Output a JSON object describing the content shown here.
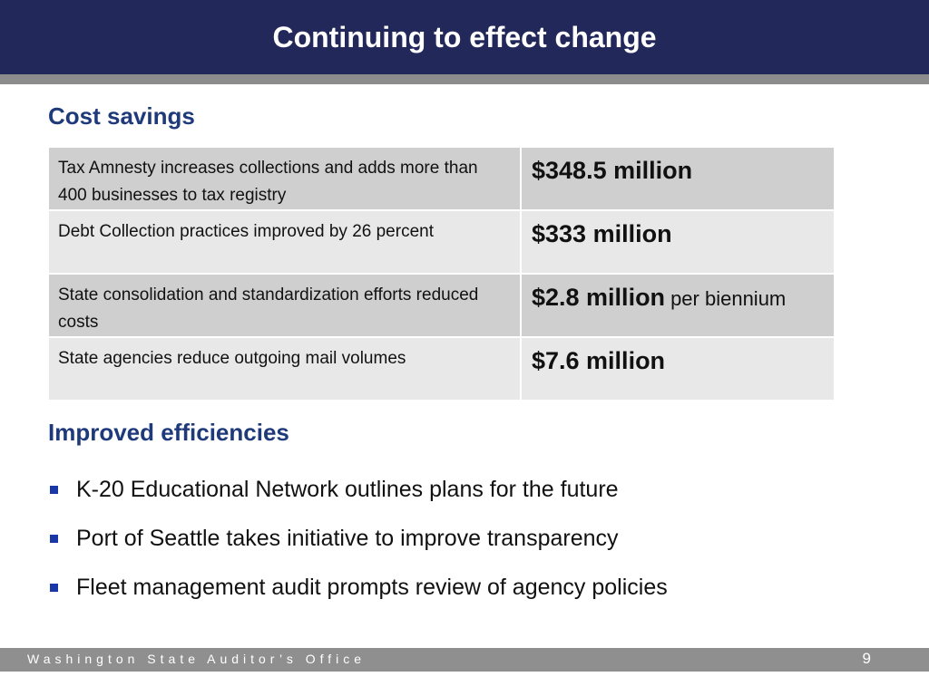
{
  "slide": {
    "title": "Continuing to effect change"
  },
  "cost_savings": {
    "heading": "Cost savings",
    "rows": [
      {
        "description": "Tax Amnesty increases collections and adds more than 400 businesses to tax registry",
        "amount": "$348.5 million",
        "suffix": ""
      },
      {
        "description": "Debt Collection practices improved by 26 percent",
        "amount": "$333 million",
        "suffix": ""
      },
      {
        "description": "State consolidation and standardization efforts reduced costs",
        "amount": "$2.8 million",
        "suffix": "per biennium"
      },
      {
        "description": "State agencies reduce outgoing mail volumes",
        "amount": "$7.6 million",
        "suffix": ""
      }
    ]
  },
  "efficiencies": {
    "heading": "Improved efficiencies",
    "items": [
      "K-20 Educational Network outlines plans for the future",
      "Port of Seattle takes initiative to improve transparency",
      "Fleet management audit prompts review of agency policies"
    ]
  },
  "footer": {
    "organization": "Washington State Auditor’s Office",
    "page_number": "9"
  },
  "colors": {
    "title_bar": "#23285a",
    "heading": "#1f3a7a",
    "bullet": "#1a37a8",
    "footer": "#8f8f8f"
  }
}
